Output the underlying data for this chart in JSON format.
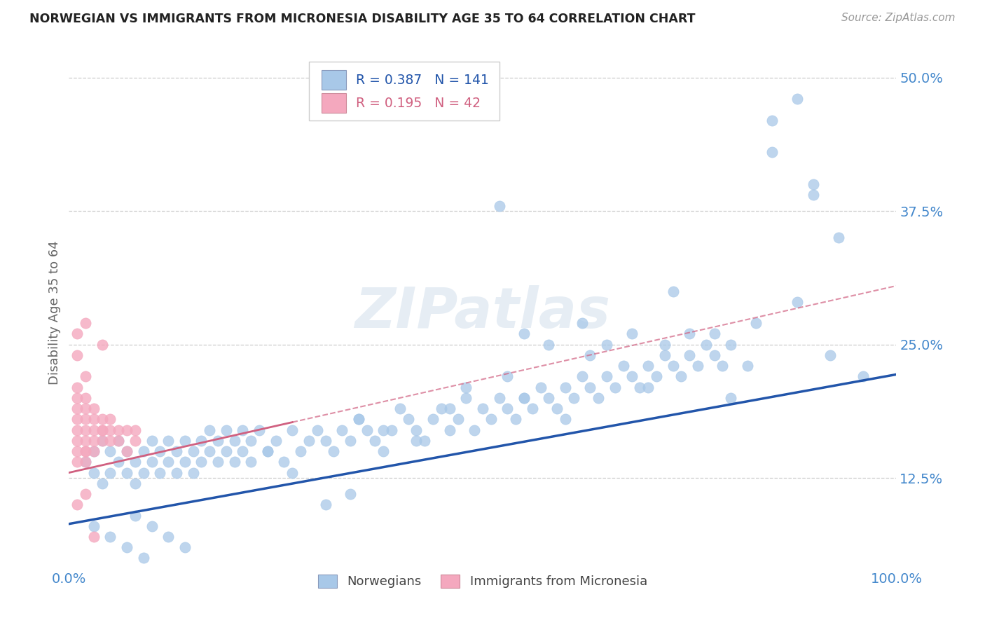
{
  "title": "NORWEGIAN VS IMMIGRANTS FROM MICRONESIA DISABILITY AGE 35 TO 64 CORRELATION CHART",
  "source": "Source: ZipAtlas.com",
  "ylabel": "Disability Age 35 to 64",
  "xlim": [
    0.0,
    1.0
  ],
  "ylim": [
    0.04,
    0.52
  ],
  "ytick_positions": [
    0.125,
    0.25,
    0.375,
    0.5
  ],
  "ytick_labels": [
    "12.5%",
    "25.0%",
    "37.5%",
    "50.0%"
  ],
  "xtick_positions": [
    0.0,
    1.0
  ],
  "xtick_labels": [
    "0.0%",
    "100.0%"
  ],
  "blue_R": 0.387,
  "blue_N": 141,
  "pink_R": 0.195,
  "pink_N": 42,
  "blue_color": "#a8c8e8",
  "pink_color": "#f4a8be",
  "blue_line_color": "#2255aa",
  "pink_line_color": "#d06080",
  "title_color": "#222222",
  "axis_label_color": "#666666",
  "tick_color": "#4488cc",
  "grid_color": "#cccccc",
  "watermark": "ZIPatlas",
  "blue_trend_y_start": 0.082,
  "blue_trend_y_end": 0.222,
  "pink_trend_y_start": 0.13,
  "pink_trend_y_end": 0.305,
  "blue_scatter_x": [
    0.02,
    0.03,
    0.03,
    0.04,
    0.04,
    0.05,
    0.05,
    0.06,
    0.06,
    0.07,
    0.07,
    0.08,
    0.08,
    0.09,
    0.09,
    0.1,
    0.1,
    0.11,
    0.11,
    0.12,
    0.12,
    0.13,
    0.13,
    0.14,
    0.14,
    0.15,
    0.15,
    0.16,
    0.16,
    0.17,
    0.17,
    0.18,
    0.18,
    0.19,
    0.19,
    0.2,
    0.2,
    0.21,
    0.21,
    0.22,
    0.22,
    0.23,
    0.24,
    0.25,
    0.26,
    0.27,
    0.28,
    0.29,
    0.3,
    0.31,
    0.32,
    0.33,
    0.34,
    0.35,
    0.36,
    0.37,
    0.38,
    0.39,
    0.4,
    0.41,
    0.42,
    0.43,
    0.44,
    0.45,
    0.46,
    0.47,
    0.48,
    0.49,
    0.5,
    0.51,
    0.52,
    0.53,
    0.54,
    0.55,
    0.56,
    0.57,
    0.58,
    0.59,
    0.6,
    0.61,
    0.62,
    0.63,
    0.64,
    0.65,
    0.66,
    0.67,
    0.68,
    0.69,
    0.7,
    0.71,
    0.72,
    0.73,
    0.74,
    0.75,
    0.76,
    0.77,
    0.78,
    0.79,
    0.8,
    0.52,
    0.63,
    0.73,
    0.83,
    0.53,
    0.48,
    0.55,
    0.58,
    0.62,
    0.68,
    0.72,
    0.78,
    0.82,
    0.88,
    0.92,
    0.85,
    0.9,
    0.93,
    0.96,
    0.55,
    0.6,
    0.65,
    0.7,
    0.75,
    0.8,
    0.35,
    0.38,
    0.42,
    0.46,
    0.24,
    0.27,
    0.31,
    0.34,
    0.08,
    0.1,
    0.12,
    0.14,
    0.03,
    0.05,
    0.07,
    0.09,
    0.85,
    0.88,
    0.9
  ],
  "blue_scatter_y": [
    0.14,
    0.13,
    0.15,
    0.12,
    0.16,
    0.13,
    0.15,
    0.14,
    0.16,
    0.13,
    0.15,
    0.12,
    0.14,
    0.13,
    0.15,
    0.14,
    0.16,
    0.13,
    0.15,
    0.14,
    0.16,
    0.13,
    0.15,
    0.14,
    0.16,
    0.15,
    0.13,
    0.16,
    0.14,
    0.15,
    0.17,
    0.14,
    0.16,
    0.15,
    0.17,
    0.14,
    0.16,
    0.15,
    0.17,
    0.16,
    0.14,
    0.17,
    0.15,
    0.16,
    0.14,
    0.17,
    0.15,
    0.16,
    0.17,
    0.16,
    0.15,
    0.17,
    0.16,
    0.18,
    0.17,
    0.16,
    0.15,
    0.17,
    0.19,
    0.18,
    0.17,
    0.16,
    0.18,
    0.19,
    0.17,
    0.18,
    0.2,
    0.17,
    0.19,
    0.18,
    0.2,
    0.19,
    0.18,
    0.2,
    0.19,
    0.21,
    0.2,
    0.19,
    0.21,
    0.2,
    0.22,
    0.21,
    0.2,
    0.22,
    0.21,
    0.23,
    0.22,
    0.21,
    0.23,
    0.22,
    0.24,
    0.23,
    0.22,
    0.24,
    0.23,
    0.25,
    0.24,
    0.23,
    0.25,
    0.38,
    0.24,
    0.3,
    0.27,
    0.22,
    0.21,
    0.26,
    0.25,
    0.27,
    0.26,
    0.25,
    0.26,
    0.23,
    0.29,
    0.24,
    0.43,
    0.4,
    0.35,
    0.22,
    0.2,
    0.18,
    0.25,
    0.21,
    0.26,
    0.2,
    0.18,
    0.17,
    0.16,
    0.19,
    0.15,
    0.13,
    0.1,
    0.11,
    0.09,
    0.08,
    0.07,
    0.06,
    0.08,
    0.07,
    0.06,
    0.05,
    0.46,
    0.48,
    0.39
  ],
  "pink_scatter_x": [
    0.01,
    0.01,
    0.01,
    0.01,
    0.01,
    0.01,
    0.01,
    0.01,
    0.01,
    0.01,
    0.02,
    0.02,
    0.02,
    0.02,
    0.02,
    0.02,
    0.02,
    0.02,
    0.02,
    0.02,
    0.03,
    0.03,
    0.03,
    0.03,
    0.03,
    0.04,
    0.04,
    0.04,
    0.04,
    0.05,
    0.05,
    0.05,
    0.06,
    0.06,
    0.07,
    0.07,
    0.08,
    0.08,
    0.01,
    0.02,
    0.03,
    0.04
  ],
  "pink_scatter_y": [
    0.14,
    0.15,
    0.16,
    0.17,
    0.18,
    0.19,
    0.2,
    0.21,
    0.24,
    0.26,
    0.14,
    0.15,
    0.16,
    0.17,
    0.18,
    0.19,
    0.2,
    0.22,
    0.27,
    0.15,
    0.15,
    0.16,
    0.17,
    0.18,
    0.19,
    0.16,
    0.17,
    0.18,
    0.17,
    0.16,
    0.17,
    0.18,
    0.16,
    0.17,
    0.15,
    0.17,
    0.16,
    0.17,
    0.1,
    0.11,
    0.07,
    0.25
  ]
}
